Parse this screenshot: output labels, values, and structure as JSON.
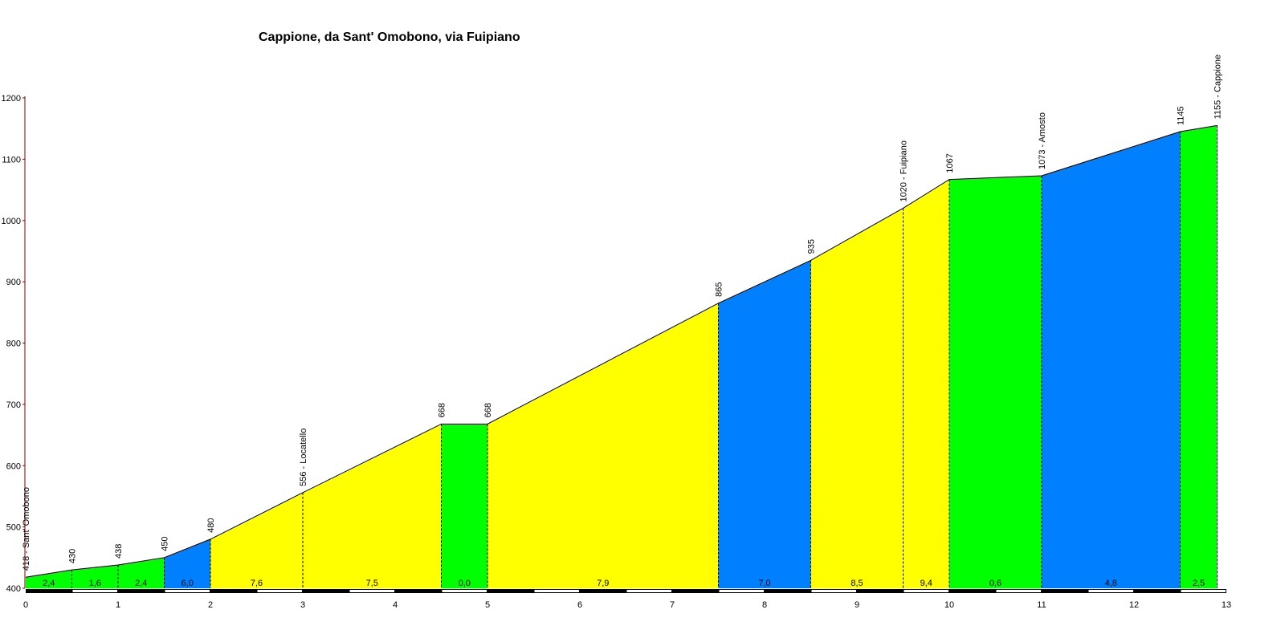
{
  "chart_data": {
    "type": "area",
    "title": "Cappione, da Sant' Omobono, via Fuipiano",
    "xlabel": "",
    "ylabel": "",
    "xlim": [
      0,
      13
    ],
    "ylim": [
      400,
      1200
    ],
    "x_ticks": [
      "0",
      "1",
      "2",
      "3",
      "4",
      "5",
      "6",
      "7",
      "8",
      "9",
      "10",
      "11",
      "12",
      "13"
    ],
    "y_ticks": [
      "400",
      "500",
      "600",
      "700",
      "800",
      "900",
      "1000",
      "1100",
      "1200"
    ],
    "colors": {
      "green": "#00ff00",
      "blue": "#0080ff",
      "yellow": "#ffff00",
      "y_axis": "#800000"
    },
    "segments": [
      {
        "x0": 0,
        "x1": 0.5,
        "grade": "2,4",
        "color": "green"
      },
      {
        "x0": 0.5,
        "x1": 1,
        "grade": "1,6",
        "color": "green"
      },
      {
        "x0": 1,
        "x1": 1.5,
        "grade": "2,4",
        "color": "green"
      },
      {
        "x0": 1.5,
        "x1": 2,
        "grade": "6,0",
        "color": "blue"
      },
      {
        "x0": 2,
        "x1": 3,
        "grade": "7,6",
        "color": "yellow"
      },
      {
        "x0": 3,
        "x1": 4.5,
        "grade": "7,5",
        "color": "yellow"
      },
      {
        "x0": 4.5,
        "x1": 5,
        "grade": "0,0",
        "color": "green"
      },
      {
        "x0": 5,
        "x1": 7.5,
        "grade": "7,9",
        "color": "yellow"
      },
      {
        "x0": 7.5,
        "x1": 8.5,
        "grade": "7,0",
        "color": "blue"
      },
      {
        "x0": 8.5,
        "x1": 9.5,
        "grade": "8,5",
        "color": "yellow"
      },
      {
        "x0": 9.5,
        "x1": 10,
        "grade": "9,4",
        "color": "yellow"
      },
      {
        "x0": 10,
        "x1": 11,
        "grade": "0,6",
        "color": "green"
      },
      {
        "x0": 11,
        "x1": 12.5,
        "grade": "4,8",
        "color": "blue"
      },
      {
        "x0": 12.5,
        "x1": 12.9,
        "grade": "2,5",
        "color": "green"
      }
    ],
    "points": [
      {
        "x": 0,
        "y": 418,
        "label": "418 - Sant' Omobono"
      },
      {
        "x": 0.5,
        "y": 430,
        "label": "430"
      },
      {
        "x": 1,
        "y": 438,
        "label": "438"
      },
      {
        "x": 1.5,
        "y": 450,
        "label": "450"
      },
      {
        "x": 2,
        "y": 480,
        "label": "480"
      },
      {
        "x": 3,
        "y": 556,
        "label": "556 - Locatello"
      },
      {
        "x": 4.5,
        "y": 668,
        "label": "668"
      },
      {
        "x": 5,
        "y": 668,
        "label": "668"
      },
      {
        "x": 7.5,
        "y": 865,
        "label": "865"
      },
      {
        "x": 8.5,
        "y": 935,
        "label": "935"
      },
      {
        "x": 9.5,
        "y": 1020,
        "label": "1020 - Fuipiano"
      },
      {
        "x": 10,
        "y": 1067,
        "label": "1067"
      },
      {
        "x": 11,
        "y": 1073,
        "label": "1073 - Amosto"
      },
      {
        "x": 12.5,
        "y": 1145,
        "label": "1145"
      },
      {
        "x": 12.9,
        "y": 1155,
        "label": "1155 - Cappione"
      }
    ]
  }
}
